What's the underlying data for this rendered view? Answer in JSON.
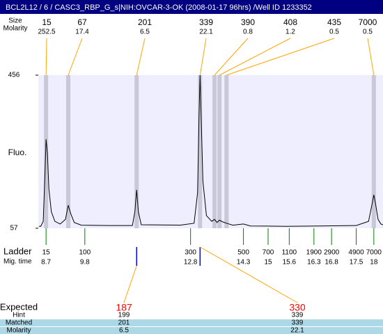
{
  "chart_data": {
    "type": "line",
    "title": "BCL2L12 / 6 / CASC3_RBP_G_s|NIH:OVCAR-3-OK (2008-01-17 96hrs) /Well ID 1233352",
    "y_label": "Fluo.",
    "ylim": [
      57,
      456
    ],
    "yticks": [
      57,
      456
    ],
    "xlim": [
      8.48,
      18.26
    ],
    "background": "#eeeeff",
    "series": [
      {
        "color": "#000000",
        "x": [
          8.5,
          8.55,
          8.62,
          8.67,
          8.7,
          8.74,
          8.78,
          8.85,
          8.95,
          9.1,
          9.25,
          9.33,
          9.4,
          9.5,
          9.7,
          10.5,
          11.15,
          11.22,
          11.27,
          11.32,
          11.4,
          12.5,
          12.9,
          13.0,
          13.04,
          13.07,
          13.1,
          13.15,
          13.25,
          13.4,
          13.48,
          13.55,
          13.62,
          13.7,
          13.82,
          14.0,
          14.3,
          14.5,
          15.5,
          16.5,
          17.5,
          17.85,
          17.95,
          18.0,
          18.05,
          18.12,
          18.2,
          18.26
        ],
        "values": [
          62,
          62,
          75,
          200,
          289,
          250,
          160,
          100,
          75,
          68,
          80,
          117,
          95,
          72,
          65,
          64,
          64,
          100,
          157,
          100,
          66,
          65,
          70,
          150,
          350,
          456,
          350,
          180,
          90,
          75,
          80,
          72,
          78,
          74,
          70,
          65,
          68,
          63,
          62,
          63,
          64,
          75,
          120,
          144,
          120,
          80,
          68,
          66
        ]
      }
    ],
    "peaks": {
      "size_label": "Size",
      "molarity_label": "Molarity",
      "color": "#ffa500",
      "sizes": [
        15,
        67,
        201,
        339,
        390,
        408,
        435,
        7000
      ],
      "molarities": [
        252.5,
        17.4,
        6.5,
        22.1,
        0.8,
        1.2,
        0.5,
        0.5
      ],
      "times": [
        8.7,
        9.33,
        11.27,
        13.07,
        13.48,
        13.62,
        13.82,
        18.0
      ]
    },
    "ladder": {
      "label": "Ladder",
      "time_label": "Mig. time",
      "color": "#008000",
      "sizes": [
        15,
        100,
        300,
        500,
        700,
        1100,
        1900,
        2900,
        4900,
        7000
      ],
      "times": [
        8.7,
        9.8,
        12.8,
        14.3,
        15,
        15.6,
        16.3,
        16.8,
        17.5,
        18
      ]
    },
    "expected": {
      "label": "Expected",
      "hint_label": "Hint",
      "matched_label": "Matched",
      "molarity_label": "Molarity",
      "expected": [
        187,
        330
      ],
      "hint": [
        199,
        339
      ],
      "matched": [
        201,
        339
      ],
      "molarity": [
        6.5,
        22.1
      ],
      "times": [
        11.27,
        13.07
      ],
      "color": "#ff0000"
    }
  }
}
